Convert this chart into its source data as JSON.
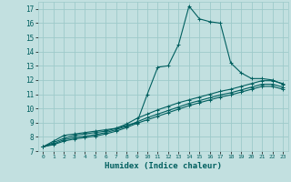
{
  "xlabel": "Humidex (Indice chaleur)",
  "bg_color": "#c2e0e0",
  "grid_color": "#9dcaca",
  "line_color": "#005f5f",
  "xlim": [
    -0.5,
    23.5
  ],
  "ylim": [
    7.0,
    17.5
  ],
  "xticks": [
    0,
    1,
    2,
    3,
    4,
    5,
    6,
    7,
    8,
    9,
    10,
    11,
    12,
    13,
    14,
    15,
    16,
    17,
    18,
    19,
    20,
    21,
    22,
    23
  ],
  "yticks": [
    7,
    8,
    9,
    10,
    11,
    12,
    13,
    14,
    15,
    16,
    17
  ],
  "lines": [
    {
      "x": [
        0,
        1,
        2,
        3,
        4,
        5,
        6,
        7,
        8,
        9,
        10,
        11,
        12,
        13,
        14,
        15,
        16,
        17,
        18,
        19,
        20,
        21,
        22,
        23
      ],
      "y": [
        7.3,
        7.7,
        8.1,
        8.2,
        8.3,
        8.4,
        8.5,
        8.6,
        8.8,
        9.0,
        11.0,
        12.9,
        13.0,
        14.5,
        17.2,
        16.3,
        16.1,
        16.0,
        13.2,
        12.5,
        12.1,
        12.1,
        12.0,
        11.7
      ]
    },
    {
      "x": [
        0,
        1,
        2,
        3,
        4,
        5,
        6,
        7,
        8,
        9,
        10,
        11,
        12,
        13,
        14,
        15,
        16,
        17,
        18,
        19,
        20,
        21,
        22,
        23
      ],
      "y": [
        7.3,
        7.6,
        7.9,
        8.1,
        8.2,
        8.3,
        8.4,
        8.6,
        8.9,
        9.3,
        9.6,
        9.9,
        10.15,
        10.4,
        10.6,
        10.8,
        11.0,
        11.2,
        11.35,
        11.55,
        11.75,
        11.95,
        11.95,
        11.75
      ]
    },
    {
      "x": [
        0,
        1,
        2,
        3,
        4,
        5,
        6,
        7,
        8,
        9,
        10,
        11,
        12,
        13,
        14,
        15,
        16,
        17,
        18,
        19,
        20,
        21,
        22,
        23
      ],
      "y": [
        7.3,
        7.5,
        7.8,
        7.95,
        8.05,
        8.15,
        8.3,
        8.5,
        8.75,
        9.05,
        9.35,
        9.6,
        9.85,
        10.1,
        10.35,
        10.55,
        10.75,
        10.95,
        11.1,
        11.3,
        11.5,
        11.7,
        11.7,
        11.5
      ]
    },
    {
      "x": [
        0,
        1,
        2,
        3,
        4,
        5,
        6,
        7,
        8,
        9,
        10,
        11,
        12,
        13,
        14,
        15,
        16,
        17,
        18,
        19,
        20,
        21,
        22,
        23
      ],
      "y": [
        7.3,
        7.45,
        7.7,
        7.85,
        7.95,
        8.05,
        8.2,
        8.4,
        8.65,
        8.95,
        9.2,
        9.45,
        9.7,
        9.95,
        10.2,
        10.4,
        10.6,
        10.8,
        10.95,
        11.15,
        11.35,
        11.55,
        11.55,
        11.35
      ]
    }
  ]
}
